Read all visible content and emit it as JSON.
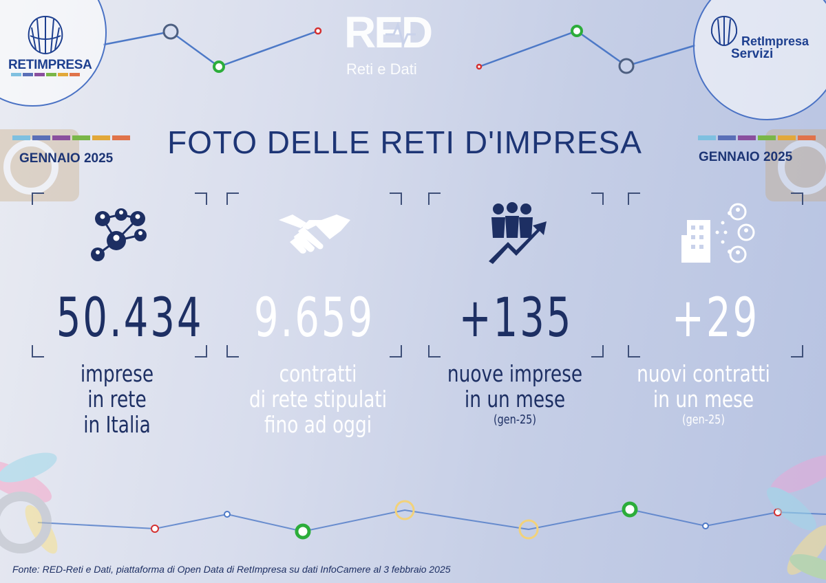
{
  "header": {
    "left_logo_text": "RETIMPRESA",
    "right_logo_line1": "RetImpresa",
    "right_logo_line2": "Servizi",
    "center_logo_word": "RED",
    "center_logo_sub": "Reti e Dati"
  },
  "title": "FOTO DELLE RETI D'IMPRESA",
  "month_left": "GENNAIO 2025",
  "month_right": "GENNAIO  2025",
  "brand_colors": [
    "#7fc0e0",
    "#5a6fb7",
    "#8a4f9e",
    "#7ab648",
    "#e2a83a",
    "#e0734a"
  ],
  "stats": [
    {
      "icon": "network-people-icon",
      "value": "50.434",
      "caption_lines": [
        "imprese",
        "in rete",
        "in Italia"
      ],
      "note": "",
      "color": "#1d2f63"
    },
    {
      "icon": "handshake-icon",
      "value": "9.659",
      "caption_lines": [
        "contratti",
        "di rete stipulati",
        "fino ad oggi"
      ],
      "note": "",
      "color": "#ffffff"
    },
    {
      "icon": "people-growth-icon",
      "value": "+135",
      "caption_lines": [
        "nuove imprese",
        "in un mese"
      ],
      "note": "(gen-25)",
      "color": "#1d2f63"
    },
    {
      "icon": "building-connections-icon",
      "value": "+29",
      "caption_lines": [
        "nuovi contratti",
        "in un mese"
      ],
      "note": "(gen-25)",
      "color": "#ffffff"
    }
  ],
  "footer": "Fonte: RED-Reti e Dati, piattaforma di Open Data di RetImpresa su dati InfoCamere al 3 febbraio 2025"
}
